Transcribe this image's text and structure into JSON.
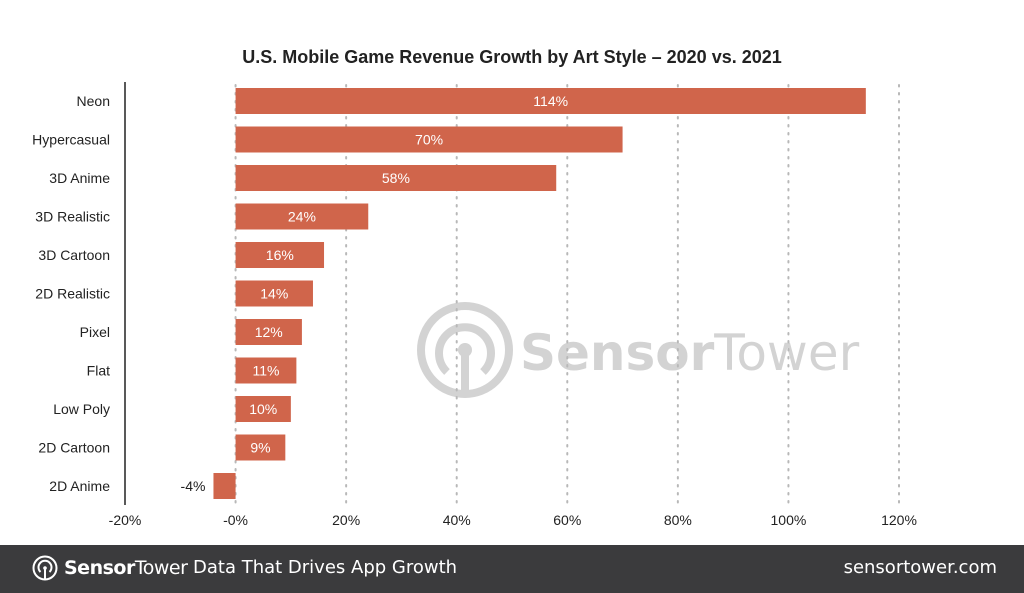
{
  "chart_data": {
    "type": "bar",
    "orientation": "horizontal",
    "title": "U.S. Mobile Game Revenue Growth by Art Style – 2020 vs. 2021",
    "categories": [
      "Neon",
      "Hypercasual",
      "3D Anime",
      "3D Realistic",
      "3D Cartoon",
      "2D Realistic",
      "Pixel",
      "Flat",
      "Low Poly",
      "2D Cartoon",
      "2D Anime"
    ],
    "values": [
      114,
      70,
      58,
      24,
      16,
      14,
      12,
      11,
      10,
      9,
      -4
    ],
    "data_labels": [
      "114%",
      "70%",
      "58%",
      "24%",
      "16%",
      "14%",
      "12%",
      "11%",
      "10%",
      "9%",
      "-4%"
    ],
    "xlim": [
      -20,
      120
    ],
    "xticks": [
      -20,
      0,
      20,
      40,
      60,
      80,
      100,
      120
    ],
    "xtick_labels": [
      "-20%",
      "-0%",
      "20%",
      "40%",
      "60%",
      "80%",
      "100%",
      "120%"
    ],
    "xlabel": "",
    "ylabel": "",
    "grid": "vertical dotted",
    "bar_color": "#d0654b",
    "watermark": "SensorTower"
  },
  "footer": {
    "brand_bold": "Sensor",
    "brand_light": "Tower",
    "tagline": "Data That Drives App Growth",
    "site": "sensortower.com"
  }
}
